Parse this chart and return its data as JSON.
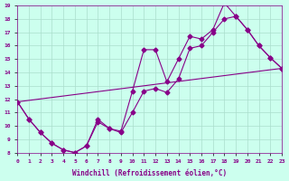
{
  "xlabel": "Windchill (Refroidissement éolien,°C)",
  "xlim": [
    0,
    23
  ],
  "ylim": [
    8,
    19
  ],
  "yticks": [
    8,
    9,
    10,
    11,
    12,
    13,
    14,
    15,
    16,
    17,
    18,
    19
  ],
  "xticks": [
    0,
    1,
    2,
    3,
    4,
    5,
    6,
    7,
    8,
    9,
    10,
    11,
    12,
    13,
    14,
    15,
    16,
    17,
    18,
    19,
    20,
    21,
    22,
    23
  ],
  "line_color": "#880088",
  "bg_color": "#ccffee",
  "grid_color": "#aaddcc",
  "line1_x": [
    0,
    1,
    2,
    3,
    4,
    5,
    6,
    7,
    8,
    9,
    10,
    11,
    12,
    13,
    14,
    15,
    16,
    17,
    18,
    19,
    20,
    21,
    22,
    23
  ],
  "line1_y": [
    11.8,
    10.5,
    9.5,
    8.7,
    8.2,
    8.0,
    8.5,
    10.5,
    9.8,
    9.6,
    12.6,
    15.7,
    15.7,
    13.3,
    15.0,
    16.7,
    16.5,
    17.2,
    19.2,
    18.2,
    17.2,
    16.0,
    15.1,
    14.3
  ],
  "line2_x": [
    0,
    1,
    2,
    3,
    4,
    5,
    6,
    7,
    8,
    9,
    10,
    11,
    12,
    13,
    14,
    15,
    16,
    17,
    18,
    19,
    20,
    21,
    22,
    23
  ],
  "line2_y": [
    11.8,
    10.5,
    9.5,
    8.7,
    8.2,
    8.0,
    8.5,
    10.3,
    9.8,
    9.5,
    11.0,
    12.6,
    12.8,
    12.5,
    13.5,
    15.8,
    16.0,
    17.0,
    18.0,
    18.2,
    17.2,
    16.0,
    15.1,
    14.3
  ],
  "line3_x": [
    0,
    1,
    2,
    3,
    4,
    5,
    6,
    7,
    8,
    9,
    10,
    11,
    12,
    13,
    14,
    15,
    16,
    17,
    18,
    19,
    20,
    21,
    22,
    23
  ],
  "line3_y": [
    11.8,
    11.909,
    12.018,
    12.127,
    12.236,
    12.345,
    12.454,
    12.563,
    12.672,
    12.781,
    12.89,
    12.999,
    13.108,
    13.217,
    13.326,
    13.435,
    13.544,
    13.653,
    13.762,
    13.871,
    13.98,
    14.089,
    14.198,
    14.3
  ]
}
